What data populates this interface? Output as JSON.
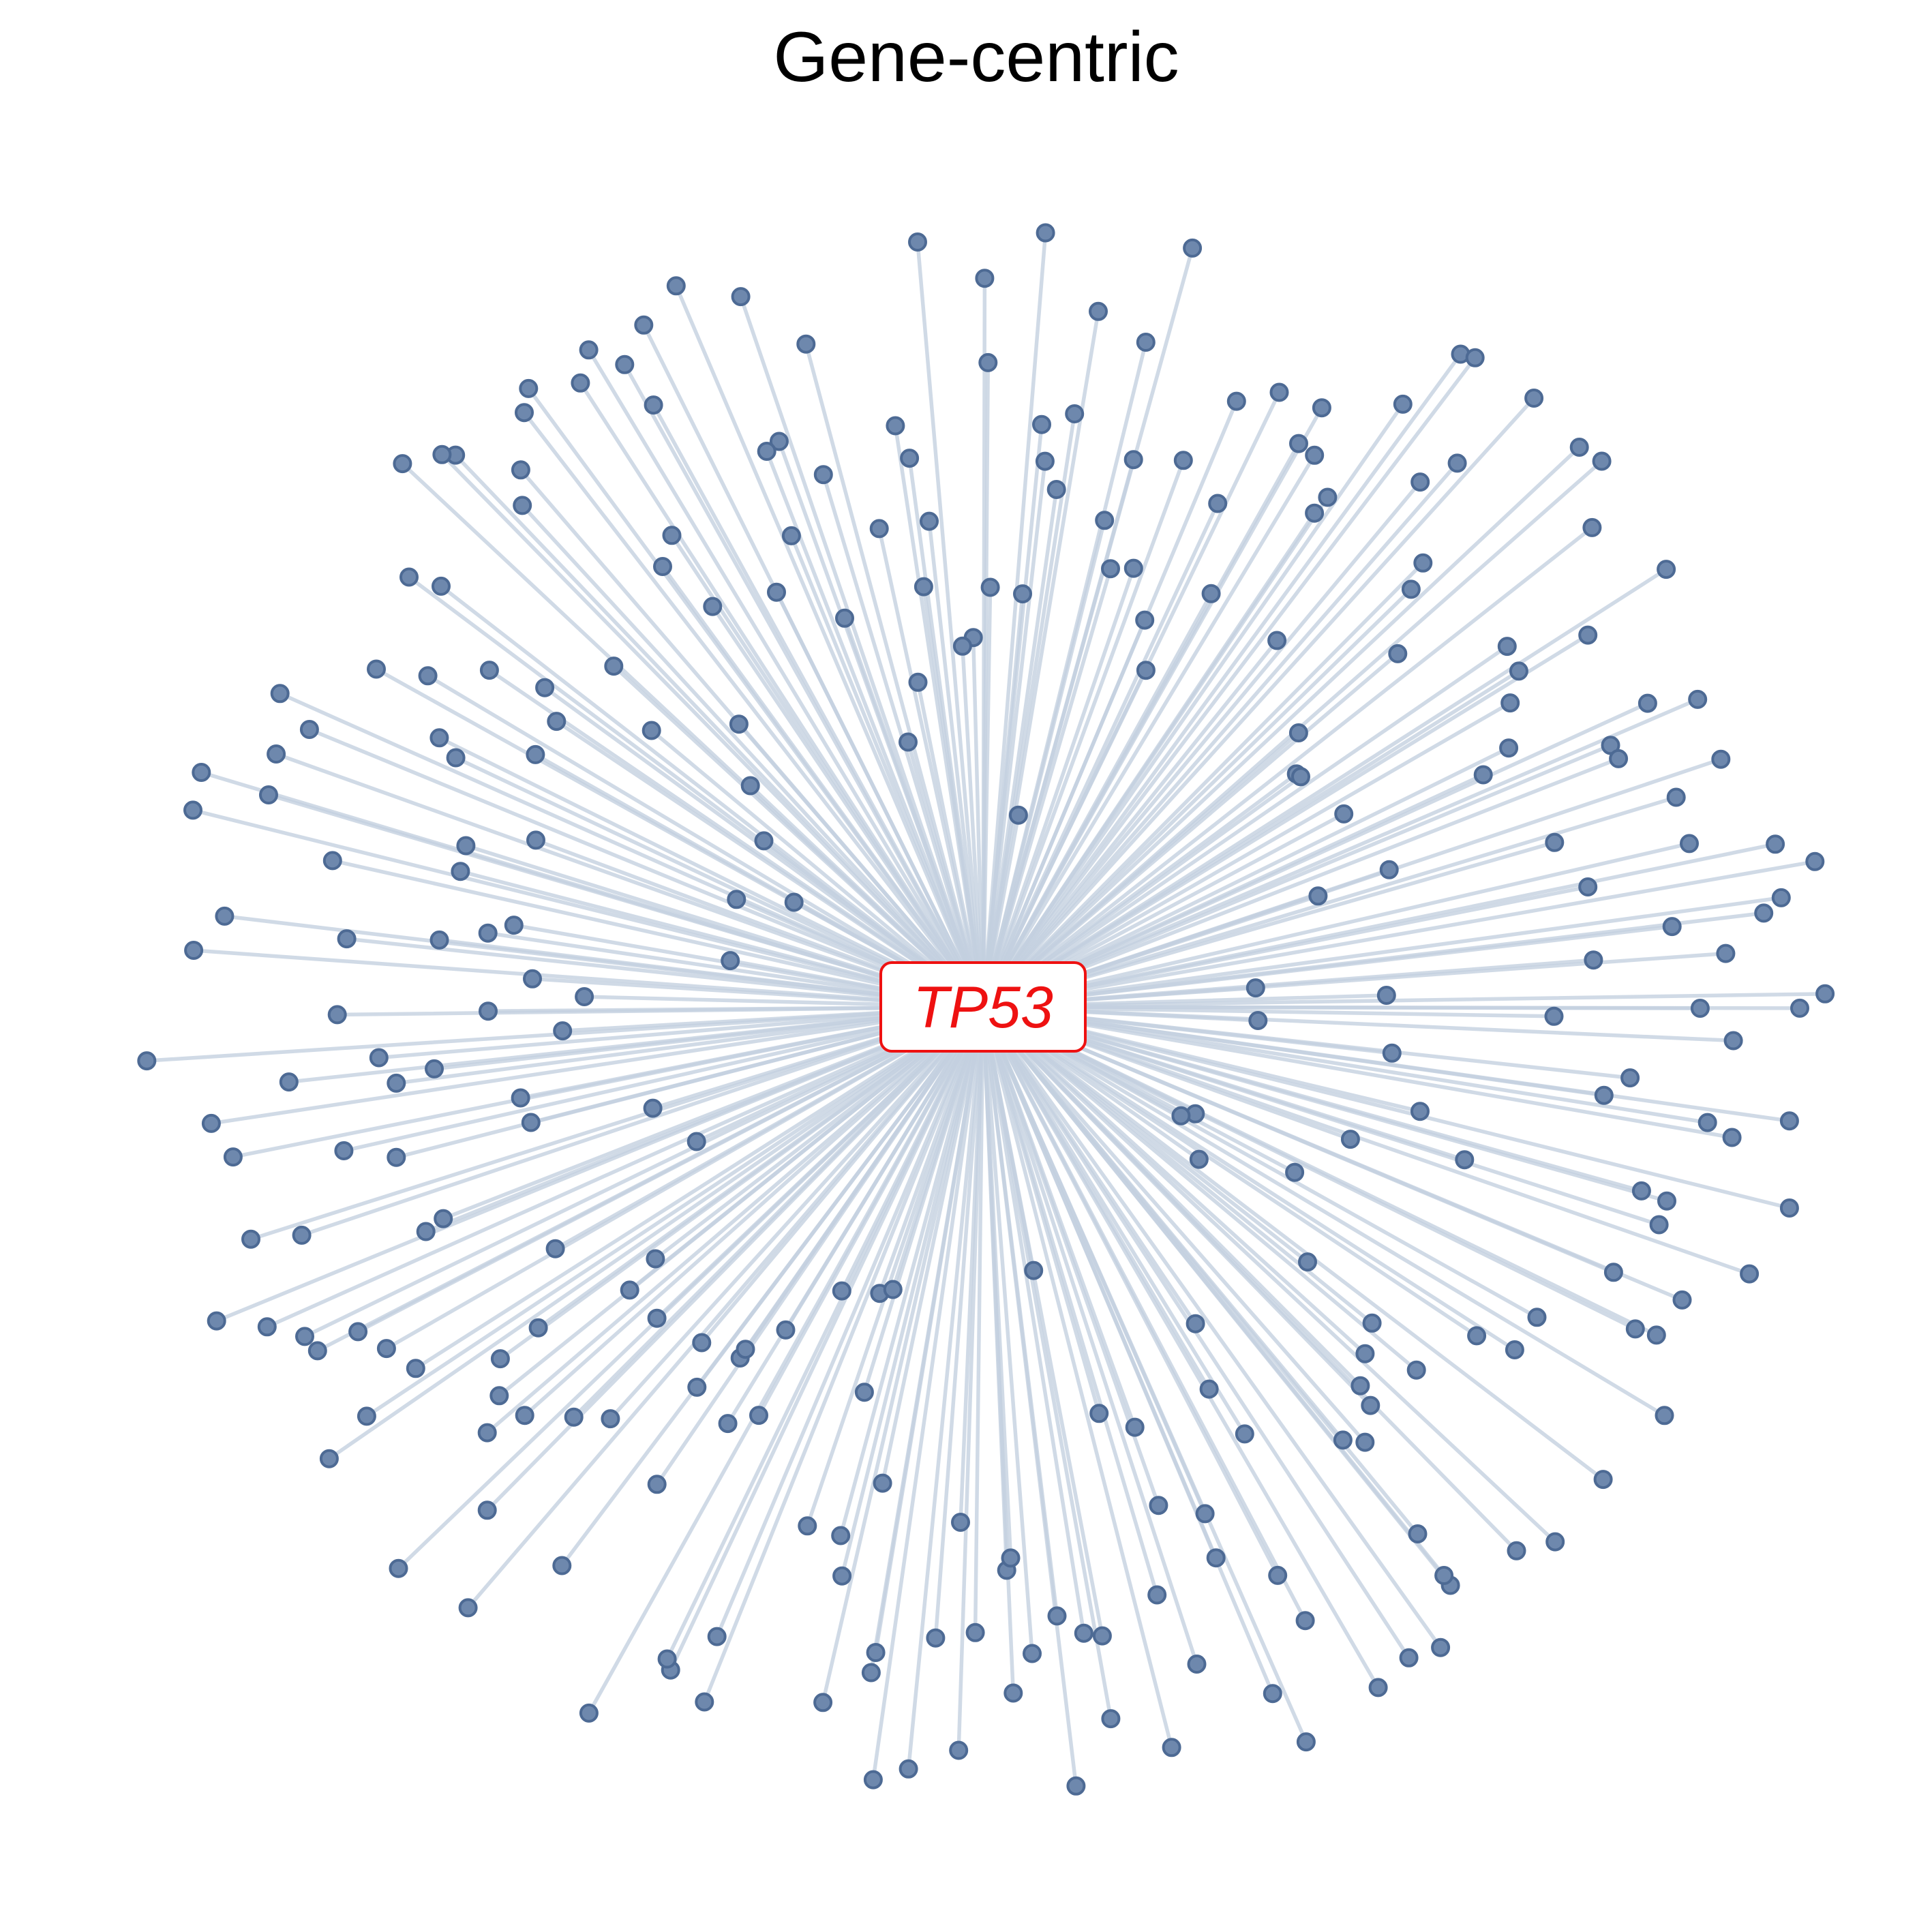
{
  "title": "Gene-centric",
  "hub": {
    "label": "TP53",
    "label_color": "#ee1111",
    "border_color": "#ee1111",
    "fill_color": "#ffffff"
  },
  "colors": {
    "edge": "#c3cfdf",
    "leaf_fill": "#6e88ad",
    "leaf_stroke": "#4d6a94",
    "background": "#ffffff"
  },
  "leaf_count": 291
}
